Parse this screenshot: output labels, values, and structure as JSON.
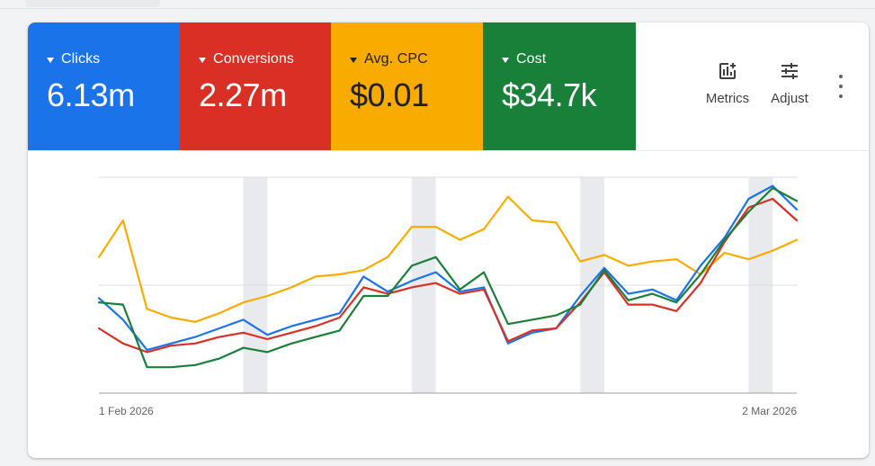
{
  "metrics": [
    {
      "id": "clicks",
      "label": "Clicks",
      "value": "6.13m",
      "color": "#1a73e8"
    },
    {
      "id": "conversions",
      "label": "Conversions",
      "value": "2.27m",
      "color": "#d93025"
    },
    {
      "id": "avg_cpc",
      "label": "Avg. CPC",
      "value": "$0.01",
      "color": "#f9ab00"
    },
    {
      "id": "cost",
      "label": "Cost",
      "value": "$34.7k",
      "color": "#188038"
    }
  ],
  "toolbar": {
    "metrics_label": "Metrics",
    "adjust_label": "Adjust",
    "metrics_icon": "add-chart-icon",
    "adjust_icon": "tune-icon",
    "more_icon": "more-vert-icon"
  },
  "chart_data": {
    "type": "line",
    "x": [
      "1 Feb 2026",
      "2 Feb 2026",
      "3 Feb 2026",
      "4 Feb 2026",
      "5 Feb 2026",
      "6 Feb 2026",
      "7 Feb 2026",
      "8 Feb 2026",
      "9 Feb 2026",
      "10 Feb 2026",
      "11 Feb 2026",
      "12 Feb 2026",
      "13 Feb 2026",
      "14 Feb 2026",
      "15 Feb 2026",
      "16 Feb 2026",
      "17 Feb 2026",
      "18 Feb 2026",
      "19 Feb 2026",
      "20 Feb 2026",
      "21 Feb 2026",
      "22 Feb 2026",
      "23 Feb 2026",
      "24 Feb 2026",
      "25 Feb 2026",
      "26 Feb 2026",
      "27 Feb 2026",
      "28 Feb 2026",
      "1 Mar 2026",
      "2 Mar 2026"
    ],
    "x_tick_labels": [
      "1 Feb 2026",
      "2 Mar 2026"
    ],
    "ylim": [
      0,
      100
    ],
    "gridlines": [
      50,
      100
    ],
    "highlighted_days": [
      "7 Feb 2026",
      "14 Feb 2026",
      "21 Feb 2026",
      "28 Feb 2026"
    ],
    "series": [
      {
        "key": "clicks",
        "color": "#1a73e8",
        "values": [
          44,
          34,
          20,
          23,
          26,
          30,
          34,
          27,
          31,
          34,
          37,
          54,
          47,
          52,
          56,
          47,
          49,
          23,
          28,
          30,
          45,
          58,
          46,
          48,
          43,
          59,
          72,
          90,
          96,
          85
        ]
      },
      {
        "key": "conversions",
        "color": "#d93025",
        "values": [
          30,
          23,
          19,
          22,
          23,
          26,
          28,
          25,
          28,
          31,
          35,
          49,
          46,
          49,
          51,
          46,
          48,
          24,
          29,
          30,
          42,
          56,
          41,
          41,
          38,
          51,
          70,
          86,
          90,
          80
        ]
      },
      {
        "key": "avg_cpc",
        "color": "#f9ab00",
        "values": [
          63,
          80,
          39,
          35,
          33,
          37,
          42,
          45,
          49,
          54,
          55,
          57,
          63,
          77,
          77,
          71,
          76,
          91,
          80,
          79,
          61,
          64,
          59,
          61,
          62,
          55,
          65,
          62,
          66,
          71
        ]
      },
      {
        "key": "cost",
        "color": "#188038",
        "values": [
          42,
          41,
          12,
          12,
          13,
          16,
          21,
          19,
          23,
          26,
          29,
          45,
          45,
          59,
          63,
          48,
          56,
          32,
          34,
          36,
          41,
          57,
          43,
          46,
          42,
          55,
          71,
          84,
          95,
          89
        ]
      }
    ]
  }
}
